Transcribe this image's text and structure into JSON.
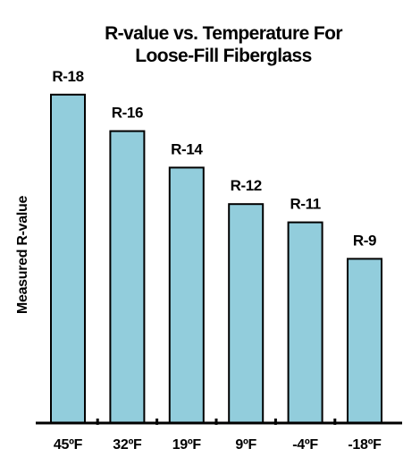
{
  "chart_data": {
    "type": "bar",
    "title_lines": [
      "R-value vs. Temperature For",
      "Loose-Fill Fiberglass"
    ],
    "ylabel": "Measured R-value",
    "xlabel": "",
    "categories": [
      "45ºF",
      "32ºF",
      "19ºF",
      "9ºF",
      "-4ºF",
      "-18ºF"
    ],
    "values": [
      18,
      16,
      14,
      12,
      11,
      9
    ],
    "data_labels": [
      "R-18",
      "R-16",
      "R-14",
      "R-12",
      "R-11",
      "R-9"
    ],
    "ylim": [
      0,
      20
    ],
    "grid": false,
    "legend": "none",
    "colors": {
      "bar_fill": "#92CDDC",
      "bar_stroke": "#000000",
      "axis": "#000000",
      "text": "#000000"
    }
  }
}
